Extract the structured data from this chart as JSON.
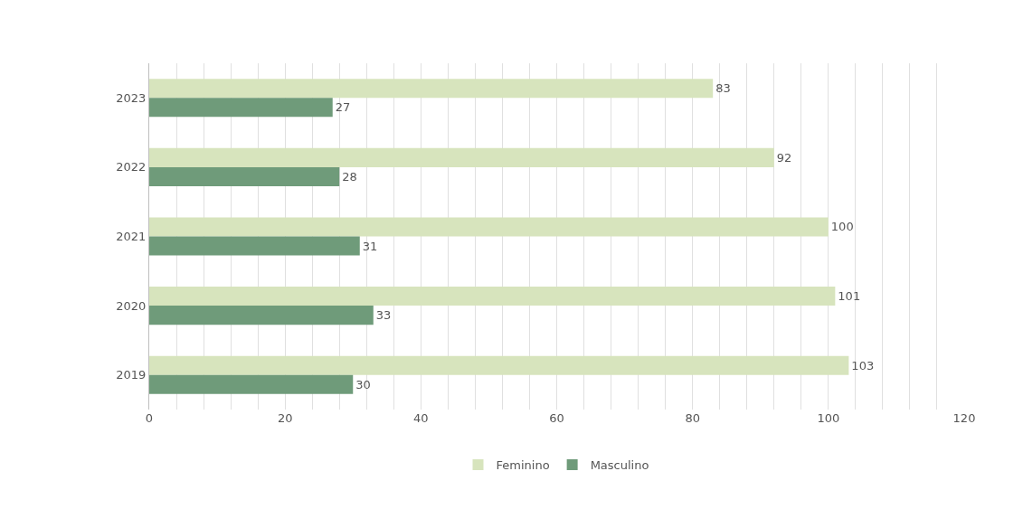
{
  "chart_data": {
    "type": "bar",
    "orientation": "horizontal",
    "categories": [
      "2023",
      "2022",
      "2021",
      "2020",
      "2019"
    ],
    "series": [
      {
        "name": "Feminino",
        "color": "#d7e4bd",
        "values": [
          83,
          92,
          100,
          101,
          103
        ]
      },
      {
        "name": "Masculino",
        "color": "#6f9b7a",
        "values": [
          27,
          28,
          31,
          33,
          30
        ]
      }
    ],
    "xlim": [
      0,
      120
    ],
    "xticks": [
      0,
      {
        "value": 4,
        "label": null
      },
      {
        "value": 8,
        "label": null
      },
      {
        "value": 12,
        "label": null
      },
      {
        "value": 16,
        "label": null
      },
      20,
      {
        "value": 24,
        "label": null
      },
      {
        "value": 28,
        "label": null
      },
      {
        "value": 32,
        "label": null
      },
      {
        "value": 36,
        "label": null
      },
      40,
      {
        "value": 44,
        "label": null
      },
      {
        "value": 48,
        "label": null
      },
      {
        "value": 52,
        "label": null
      },
      {
        "value": 56,
        "label": null
      },
      60,
      {
        "value": 64,
        "label": null
      },
      {
        "value": 68,
        "label": null
      },
      {
        "value": 72,
        "label": null
      },
      {
        "value": 76,
        "label": null
      },
      80,
      {
        "value": 84,
        "label": null
      },
      {
        "value": 88,
        "label": null
      },
      {
        "value": 92,
        "label": null
      },
      {
        "value": 96,
        "label": null
      },
      100,
      {
        "value": 104,
        "label": null
      },
      {
        "value": 108,
        "label": null
      },
      {
        "value": 112,
        "label": null
      },
      {
        "value": 116,
        "label": null
      },
      120
    ],
    "grid": "x",
    "legend": "bottom",
    "data_labels": true
  }
}
